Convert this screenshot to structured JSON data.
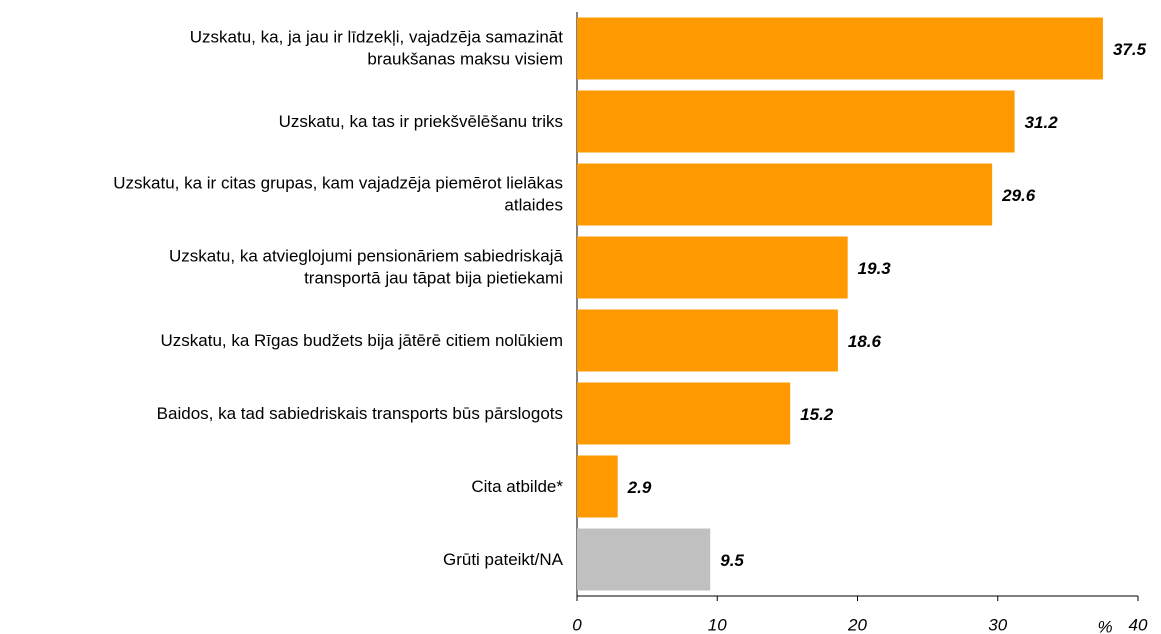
{
  "chart_data": {
    "type": "bar",
    "orientation": "horizontal",
    "categories": [
      "Uzskatu, ka, ja jau ir līdzekļi, vajadzēja samazināt\nbraukšanas maksu visiem",
      "Uzskatu, ka tas ir priekšvēlēšanu triks",
      "Uzskatu, ka ir citas grupas, kam vajadzēja piemērot lielākas\natlaides",
      "Uzskatu, ka atvieglojumi pensionāriem sabiedriskajā\ntransportā jau tāpat bija pietiekami",
      "Uzskatu, ka Rīgas budžets bija jātērē citiem nolūkiem",
      "Baidos, ka tad sabiedriskais transports būs pārslogots",
      "Cita atbilde*",
      "Grūti pateikt/NA"
    ],
    "values": [
      37.5,
      31.2,
      29.6,
      19.3,
      18.6,
      15.2,
      2.9,
      9.5
    ],
    "value_labels": [
      "37.5",
      "31.2",
      "29.6",
      "19.3",
      "18.6",
      "15.2",
      "2.9",
      "9.5"
    ],
    "colors": [
      "#ff9900",
      "#ff9900",
      "#ff9900",
      "#ff9900",
      "#ff9900",
      "#ff9900",
      "#ff9900",
      "#c0c0c0"
    ],
    "xlabel": "%",
    "xlim": [
      0,
      40
    ],
    "xticks": [
      0,
      10,
      20,
      30,
      40
    ]
  }
}
